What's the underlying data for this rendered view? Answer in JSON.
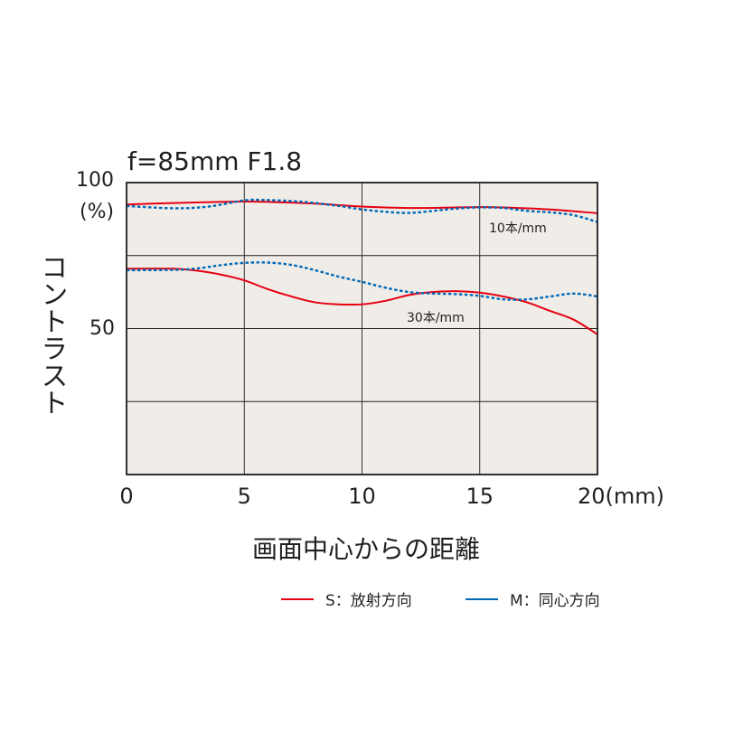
{
  "chart_data": {
    "type": "line",
    "title": "f=85mm F1.8",
    "xlabel": "画面中心からの距離",
    "ylabel": "コントラスト",
    "xlim": [
      0,
      20
    ],
    "ylim": [
      0,
      100
    ],
    "x_ticks": [
      0,
      5,
      10,
      15,
      20
    ],
    "x_tick_labels": [
      "0",
      "5",
      "10",
      "15",
      "20(mm)"
    ],
    "y_tick_labels": [
      "100",
      "(%)",
      "50"
    ],
    "grid": true,
    "legend_position": "bottom-right",
    "legend": [
      {
        "label": "S：放射方向",
        "color": "#e60012",
        "style": "solid"
      },
      {
        "label": "M：同心方向",
        "color": "#0068b7",
        "style": "dotted"
      }
    ],
    "annotations": [
      "10本/mm",
      "30本/mm"
    ],
    "series": [
      {
        "group": "10本/mm",
        "kind": "S",
        "color": "#e60012",
        "style": "solid",
        "points": [
          [
            0,
            92.5
          ],
          [
            2,
            93
          ],
          [
            4,
            93.4
          ],
          [
            5,
            93.5
          ],
          [
            6,
            93.4
          ],
          [
            8,
            92.8
          ],
          [
            10,
            91.8
          ],
          [
            12,
            91.3
          ],
          [
            14,
            91.5
          ],
          [
            15,
            91.6
          ],
          [
            16,
            91.5
          ],
          [
            18,
            90.8
          ],
          [
            20,
            89.5
          ]
        ]
      },
      {
        "group": "10本/mm",
        "kind": "M",
        "color": "#0068b7",
        "style": "dotted",
        "points": [
          [
            0,
            92
          ],
          [
            2,
            91.2
          ],
          [
            3.5,
            91.8
          ],
          [
            5,
            93.9
          ],
          [
            6,
            94
          ],
          [
            7.5,
            93.4
          ],
          [
            9,
            92
          ],
          [
            10,
            90.8
          ],
          [
            11,
            90
          ],
          [
            12,
            89.6
          ],
          [
            13,
            90.3
          ],
          [
            14,
            91.1
          ],
          [
            15,
            91.5
          ],
          [
            16,
            91.3
          ],
          [
            17,
            90.3
          ],
          [
            18,
            89.8
          ],
          [
            19,
            88.8
          ],
          [
            20,
            86.5
          ]
        ]
      },
      {
        "group": "30本/mm",
        "kind": "S",
        "color": "#e60012",
        "style": "solid",
        "points": [
          [
            0,
            70.5
          ],
          [
            2,
            70.5
          ],
          [
            3,
            69.8
          ],
          [
            4,
            68.5
          ],
          [
            5,
            66.5
          ],
          [
            6,
            63.5
          ],
          [
            7,
            61
          ],
          [
            8,
            59
          ],
          [
            9,
            58.3
          ],
          [
            10,
            58.3
          ],
          [
            11,
            59.5
          ],
          [
            12,
            61.5
          ],
          [
            13,
            62.5
          ],
          [
            14,
            62.8
          ],
          [
            15,
            62.3
          ],
          [
            16,
            61
          ],
          [
            17,
            59
          ],
          [
            18,
            56
          ],
          [
            19,
            53
          ],
          [
            20,
            48
          ]
        ]
      },
      {
        "group": "30本/mm",
        "kind": "M",
        "color": "#0068b7",
        "style": "dotted",
        "points": [
          [
            0,
            70
          ],
          [
            2,
            70.1
          ],
          [
            3,
            70.6
          ],
          [
            4,
            71.7
          ],
          [
            5,
            72.5
          ],
          [
            6,
            72.6
          ],
          [
            7,
            71.8
          ],
          [
            8,
            70
          ],
          [
            9,
            67.8
          ],
          [
            10,
            66
          ],
          [
            11,
            64
          ],
          [
            12,
            62.5
          ],
          [
            13,
            62
          ],
          [
            14,
            61.8
          ],
          [
            15,
            61.2
          ],
          [
            16,
            60
          ],
          [
            17,
            60
          ],
          [
            18,
            61
          ],
          [
            19,
            62
          ],
          [
            20,
            61
          ]
        ]
      }
    ]
  }
}
